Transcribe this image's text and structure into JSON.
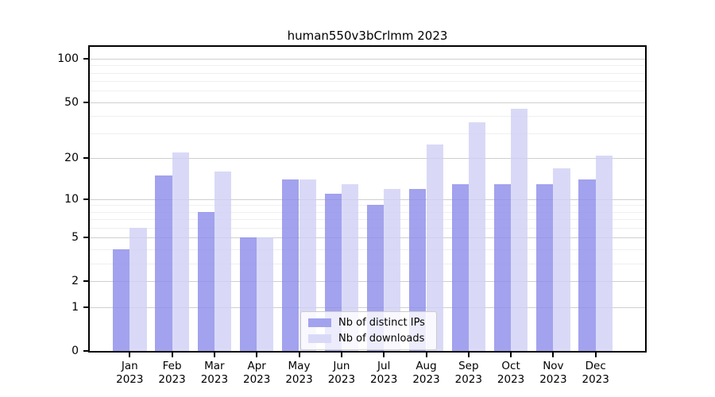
{
  "title": "human550v3bCrlmm 2023",
  "legend": {
    "items": [
      {
        "label": "Nb of distinct IPs",
        "swatch_color": "#a2a2ee"
      },
      {
        "label": "Nb of downloads",
        "swatch_color": "#d9d9f7"
      }
    ]
  },
  "chart_data": {
    "type": "bar",
    "title": "human550v3bCrlmm 2023",
    "categories": [
      "Jan",
      "Feb",
      "Mar",
      "Apr",
      "May",
      "Jun",
      "Jul",
      "Aug",
      "Sep",
      "Oct",
      "Nov",
      "Dec"
    ],
    "x_year_label": "2023",
    "series": [
      {
        "name": "Nb of distinct IPs",
        "color": "#a2a2ee",
        "values": [
          4,
          15,
          8,
          5,
          14,
          11,
          9,
          12,
          13,
          13,
          13,
          14
        ]
      },
      {
        "name": "Nb of downloads",
        "color": "#d9d9f7",
        "values": [
          6,
          22,
          16,
          5,
          14,
          13,
          12,
          25,
          36,
          45,
          17,
          21
        ]
      }
    ],
    "xlabel": "",
    "ylabel": "",
    "yscale": "log1p",
    "ylim": [
      0,
      110
    ],
    "yticks": [
      0,
      1,
      2,
      5,
      10,
      20,
      50,
      100
    ],
    "minor_yticks": [
      3,
      4,
      6,
      7,
      8,
      9,
      30,
      40,
      60,
      70,
      80,
      90
    ],
    "grid": "on",
    "legend_position": "lower center"
  },
  "colors": {
    "series1_bar": "#a2a2ee",
    "series2_bar": "#d9d9f7",
    "major_grid": "#cfcfcf",
    "minor_grid": "#efefef",
    "axis": "#000000",
    "background": "#ffffff"
  }
}
